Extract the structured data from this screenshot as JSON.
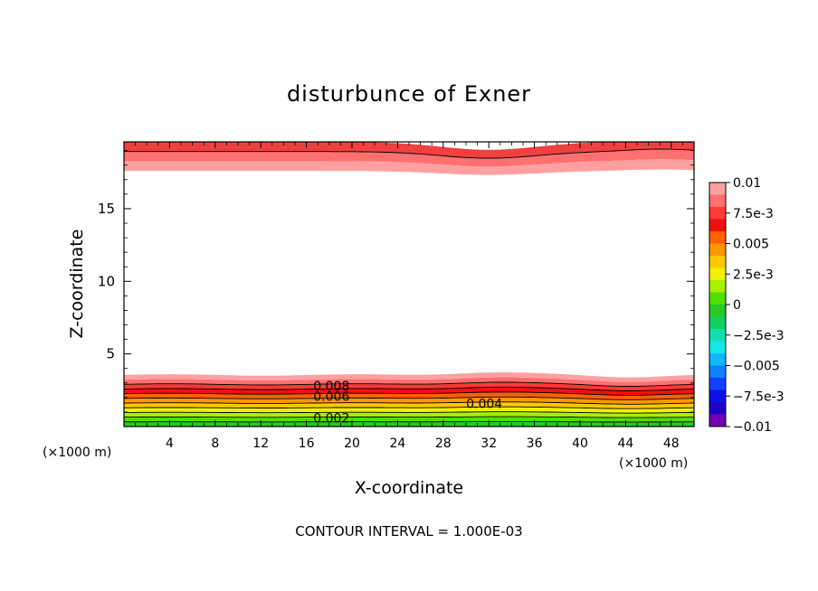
{
  "chart_data": {
    "type": "contour",
    "title": "disturbunce of Exner",
    "xlabel": "X-coordinate",
    "ylabel": "Z-coordinate",
    "x_unit_left": "(×1000 m)",
    "x_unit_right": "(×1000 m)",
    "xlim": [
      0,
      50
    ],
    "ylim": [
      0,
      19.6
    ],
    "xticks": [
      4,
      8,
      12,
      16,
      20,
      24,
      28,
      32,
      36,
      40,
      44,
      48
    ],
    "xtick_labels": [
      "4",
      "8",
      "12",
      "16",
      "20",
      "24",
      "28",
      "32",
      "36",
      "40",
      "44",
      "48"
    ],
    "yticks": [
      5,
      10,
      15
    ],
    "ytick_labels": [
      "5",
      "10",
      "15"
    ],
    "footer": "CONTOUR INTERVAL = 1.000E-03",
    "contour_interval": 0.001,
    "contour_labels": [
      {
        "text": "0.008",
        "x": 18.2,
        "y": 2.8
      },
      {
        "text": "0.006",
        "x": 18.2,
        "y": 2.1
      },
      {
        "text": "0.004",
        "x": 31.6,
        "y": 1.6
      },
      {
        "text": "0.002",
        "x": 18.2,
        "y": 0.6
      }
    ],
    "colorbar": {
      "ticks": [
        "0.01",
        "7.5e-3",
        "0.005",
        "2.5e-3",
        "0",
        "−2.5e-3",
        "−0.005",
        "−7.5e-3",
        "−0.01"
      ],
      "colors": [
        "#ffa0a0",
        "#ff7070",
        "#ff3838",
        "#f01010",
        "#ff6000",
        "#ff9800",
        "#ffc800",
        "#f0f000",
        "#a8f000",
        "#50e000",
        "#28c828",
        "#10d060",
        "#10e0b0",
        "#10e8e8",
        "#10b8ff",
        "#1080ff",
        "#1040ff",
        "#1010e8",
        "#2000c8",
        "#7000b0"
      ]
    },
    "regions": {
      "top_band": {
        "color_levels": [
          "#f04040",
          "#ff7070",
          "#ffa0a0"
        ],
        "value_range": [
          0.0085,
          0.01
        ]
      },
      "bottom_band": {
        "value_range": [
          0.0,
          0.0095
        ]
      }
    }
  }
}
